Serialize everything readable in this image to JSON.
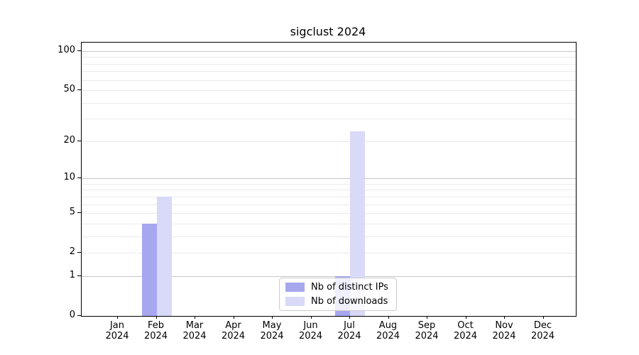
{
  "title": "sigclust 2024",
  "chart_data": {
    "type": "bar",
    "title": "sigclust 2024",
    "months": [
      "Jan",
      "Feb",
      "Mar",
      "Apr",
      "May",
      "Jun",
      "Jul",
      "Aug",
      "Sep",
      "Oct",
      "Nov",
      "Dec"
    ],
    "year": "2024",
    "categories": [
      "Jan 2024",
      "Feb 2024",
      "Mar 2024",
      "Apr 2024",
      "May 2024",
      "Jun 2024",
      "Jul 2024",
      "Aug 2024",
      "Sep 2024",
      "Oct 2024",
      "Nov 2024",
      "Dec 2024"
    ],
    "series": [
      {
        "name": "Nb of distinct IPs",
        "color": "#a7a7f0",
        "values": [
          0,
          4,
          0,
          0,
          0,
          0,
          1,
          0,
          0,
          0,
          0,
          0
        ]
      },
      {
        "name": "Nb of downloads",
        "color": "#d9d9f8",
        "values": [
          0,
          7,
          0,
          0,
          0,
          0,
          24,
          0,
          0,
          0,
          0,
          0
        ]
      }
    ],
    "xlabel": "",
    "ylabel": "",
    "yscale": "log(1+x)",
    "ylim": [
      0,
      116
    ],
    "y_ticks": [
      0,
      1,
      2,
      5,
      10,
      20,
      50,
      100
    ],
    "grid_major": [
      1,
      10,
      100
    ],
    "grid_minor": [
      2,
      3,
      4,
      5,
      6,
      7,
      8,
      9,
      20,
      30,
      40,
      50,
      60,
      70,
      80,
      90
    ],
    "grid": "on",
    "legend_position": "lower center"
  },
  "colors": {
    "distinct_ips": "#a7a7f0",
    "downloads": "#d9d9f8",
    "grid_major": "#c6c6c6",
    "grid_minor": "#ebebeb",
    "axis": "#000000",
    "background": "#ffffff"
  }
}
